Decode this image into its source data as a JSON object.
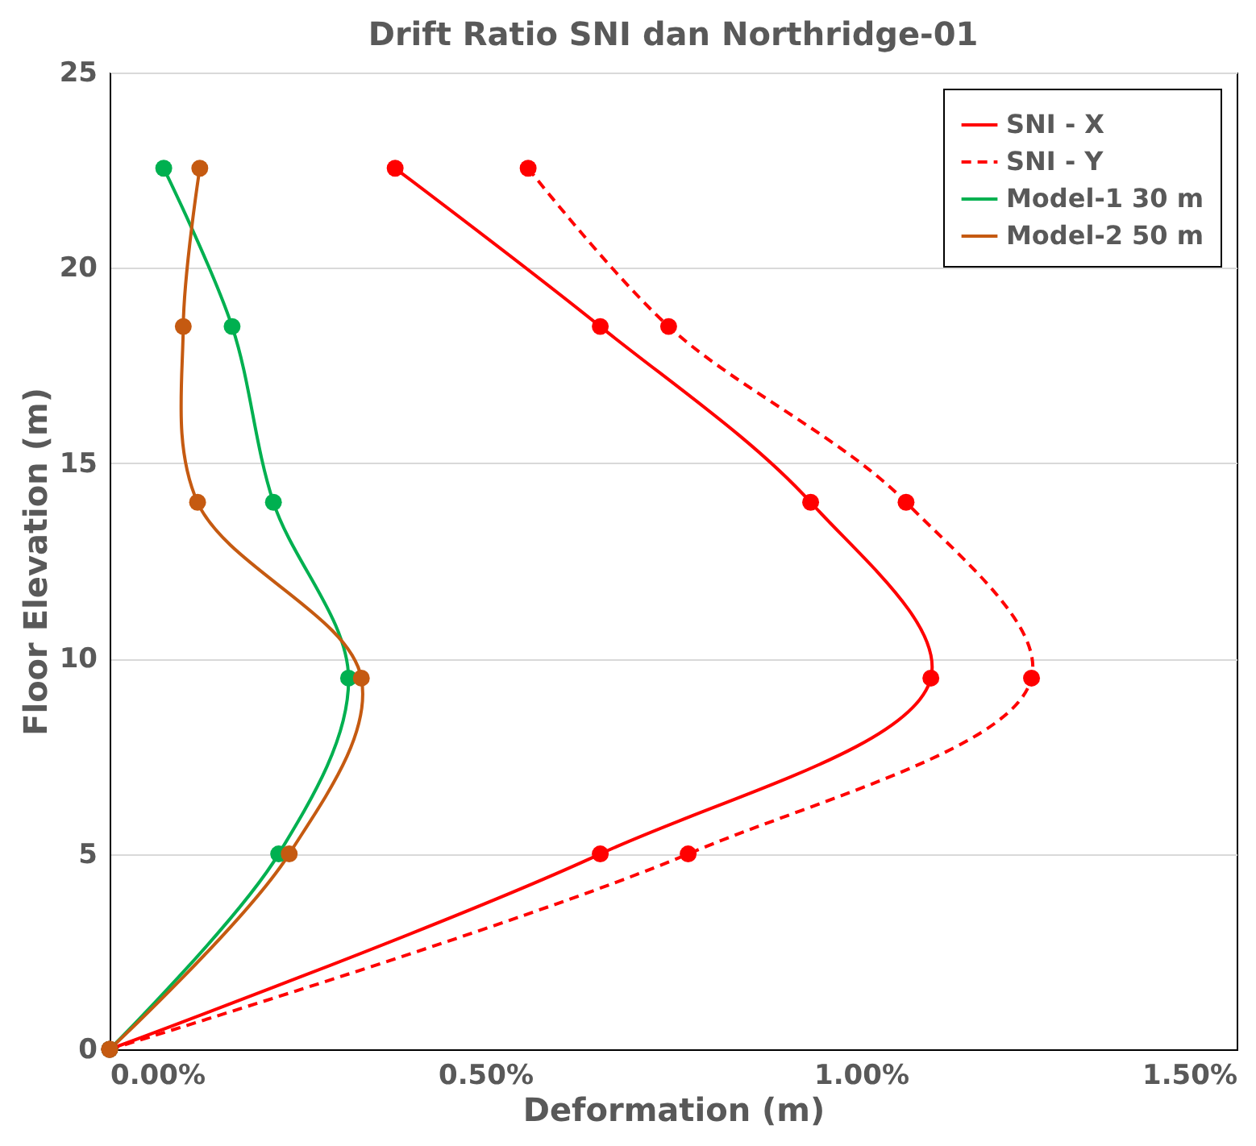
{
  "chart_data": {
    "type": "line",
    "title": "Drift Ratio SNI dan Northridge-01",
    "xlabel": "Deformation (m)",
    "ylabel": "Floor Elevation (m)",
    "xlim": [
      0,
      1.5
    ],
    "xticks": [
      {
        "value": 0,
        "label": "0.00%"
      },
      {
        "value": 0.5,
        "label": "0.50%"
      },
      {
        "value": 1.0,
        "label": "1.00%"
      },
      {
        "value": 1.5,
        "label": "1.50%"
      }
    ],
    "ylim": [
      0,
      25
    ],
    "yticks": [
      0,
      5,
      10,
      15,
      20,
      25
    ],
    "grid": "y",
    "legend": "top right",
    "marker": "circle",
    "series": [
      {
        "name": "SNI - X",
        "color": "#ff0000",
        "line_style": "solid",
        "x": [
          0,
          0.653,
          1.093,
          0.933,
          0.653,
          0.38
        ],
        "values": [
          0,
          5,
          9.5,
          14,
          18.5,
          22.55
        ]
      },
      {
        "name": "SNI - Y",
        "color": "#ff0000",
        "line_style": "dashed",
        "x": [
          0,
          0.77,
          1.227,
          1.06,
          0.744,
          0.557
        ],
        "values": [
          0,
          5,
          9.5,
          14,
          18.5,
          22.55
        ]
      },
      {
        "name": "Model-1 30 m",
        "color": "#00b050",
        "line_style": "solid",
        "x": [
          0,
          0.225,
          0.318,
          0.218,
          0.163,
          0.072
        ],
        "values": [
          0,
          5,
          9.5,
          14,
          18.5,
          22.55
        ]
      },
      {
        "name": "Model-2 50 m",
        "color": "#c55a11",
        "line_style": "solid",
        "x": [
          0,
          0.239,
          0.335,
          0.117,
          0.098,
          0.12
        ],
        "values": [
          0,
          5,
          9.5,
          14,
          18.5,
          22.55
        ]
      }
    ]
  }
}
